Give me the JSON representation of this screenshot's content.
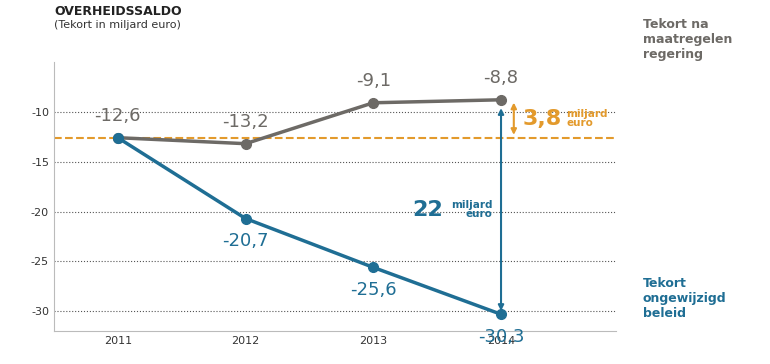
{
  "chart_data": {
    "type": "line",
    "title": "OVERHEIDSSALDO",
    "subtitle": "(Tekort in miljard euro)",
    "categories": [
      "2011",
      "2012",
      "2013",
      "2014"
    ],
    "series": [
      {
        "name": "Tekort na maatregelen regering",
        "color": "#6d6a66",
        "marker": "circle",
        "line_style": "solid",
        "values": [
          -12.6,
          -13.2,
          -9.1,
          -8.8
        ],
        "value_labels": [
          "-12,6",
          "-13,2",
          "-9,1",
          "-8,8"
        ]
      },
      {
        "name": "Tekort ongewijzigd beleid",
        "color": "#1f6e94",
        "marker": "circle",
        "line_style": "solid",
        "values": [
          -12.6,
          -20.7,
          -25.6,
          -30.3
        ],
        "value_labels": [
          null,
          "-20,7",
          "-25,6",
          "-30,3"
        ]
      }
    ],
    "reference_line": {
      "value": -12.6,
      "color": "#e39a2c",
      "line_style": "dashed"
    },
    "annotations": [
      {
        "label": "3,8",
        "unit": "miljard\neuro",
        "value": 3.8,
        "color": "#e39a2c"
      },
      {
        "label": "22",
        "unit": "miljard\neuro",
        "value": 22,
        "color": "#1f6e94"
      }
    ],
    "ylim": [
      -32,
      -5
    ],
    "yticks": [
      -10,
      -15,
      -20,
      -25,
      -30
    ],
    "grid": true,
    "data_labels": true
  }
}
